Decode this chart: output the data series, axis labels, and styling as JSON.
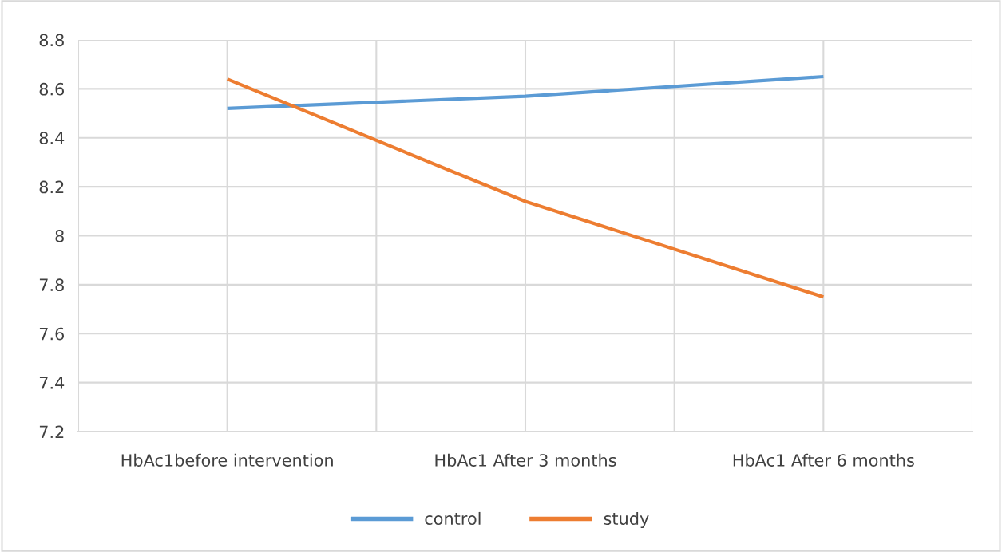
{
  "chart_data": {
    "type": "line",
    "categories": [
      "HbAc1before intervention",
      "HbAc1 After 3 months",
      "HbAc1 After 6 months"
    ],
    "series": [
      {
        "name": "control",
        "color": "#5b9bd5",
        "values": [
          8.52,
          8.57,
          8.65
        ]
      },
      {
        "name": "study",
        "color": "#ed7d31",
        "values": [
          8.64,
          8.14,
          7.75
        ]
      }
    ],
    "ylim": [
      7.2,
      8.8
    ],
    "yticks": [
      7.2,
      7.4,
      7.6,
      7.8,
      {
        "value": 8,
        "label": "8"
      },
      8.2,
      8.4,
      8.6,
      8.8
    ],
    "grid": true,
    "legend": "bottom",
    "marker": "none",
    "line_style": "solid"
  }
}
